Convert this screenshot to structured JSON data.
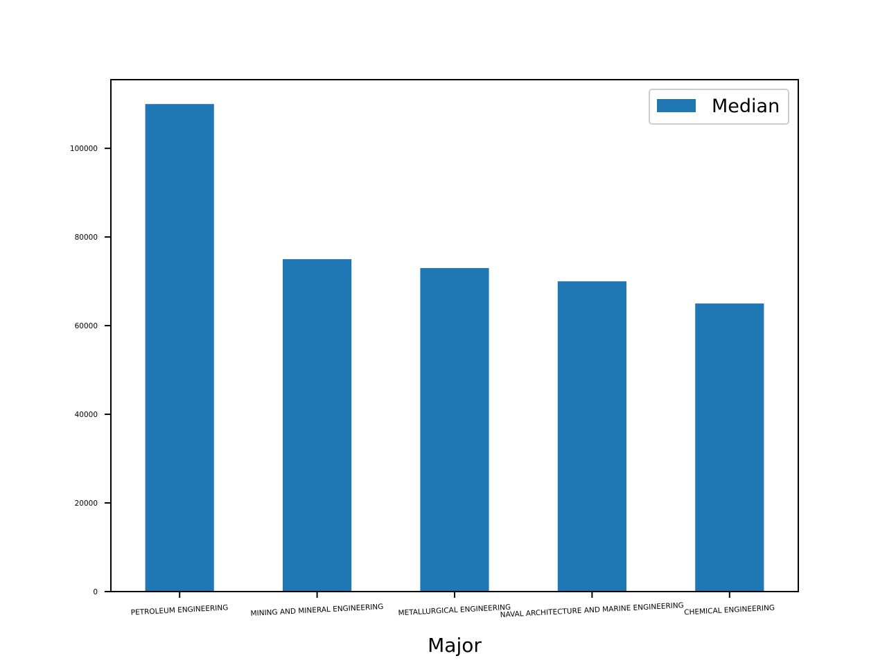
{
  "chart_data": {
    "type": "bar",
    "title": "",
    "xlabel": "Major",
    "ylabel": "",
    "categories": [
      "PETROLEUM ENGINEERING",
      "MINING AND MINERAL ENGINEERING",
      "METALLURGICAL ENGINEERING",
      "NAVAL ARCHITECTURE AND MARINE ENGINEERING",
      "CHEMICAL ENGINEERING"
    ],
    "series": [
      {
        "name": "Median",
        "values": [
          110000,
          75000,
          73000,
          70000,
          65000
        ],
        "color": "#1f77b4"
      }
    ],
    "ylim": [
      0,
      115500
    ],
    "yticks": [
      0,
      20000,
      40000,
      60000,
      80000,
      100000
    ],
    "ytick_labels": [
      "0",
      "20000",
      "40000",
      "60000",
      "80000",
      "100000"
    ],
    "grid": false,
    "legend_position": "top-right"
  }
}
